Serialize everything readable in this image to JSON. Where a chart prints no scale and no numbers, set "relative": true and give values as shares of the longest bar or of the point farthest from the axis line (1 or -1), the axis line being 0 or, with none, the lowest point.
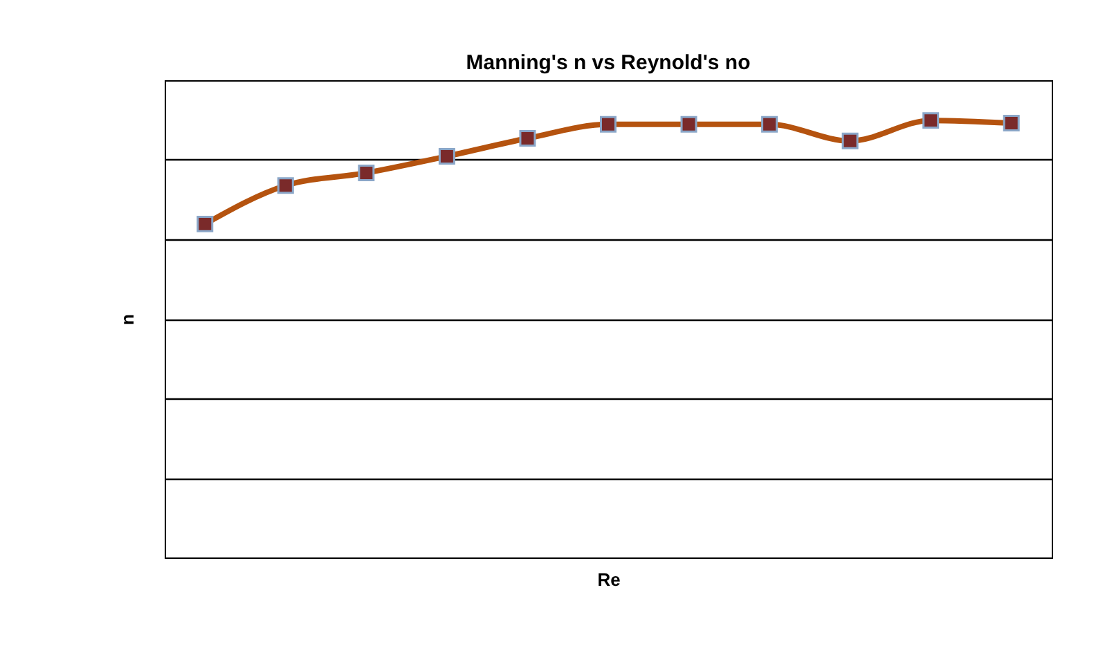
{
  "chart_data": {
    "type": "line",
    "title": "Manning's n vs Reynold's no",
    "xlabel": "Re",
    "ylabel": "n",
    "relative": true,
    "grid": "y",
    "marker": "square",
    "line_style": "solid",
    "tick_labels": false,
    "categories": [
      null,
      null,
      null,
      null,
      null,
      null,
      null,
      null,
      null,
      null,
      null
    ],
    "series": [
      {
        "color": "#b5530f",
        "values": [
          0.763,
          0.851,
          0.88,
          0.918,
          0.959,
          0.991,
          0.991,
          0.991,
          0.953,
          1,
          0.994
        ]
      }
    ]
  }
}
